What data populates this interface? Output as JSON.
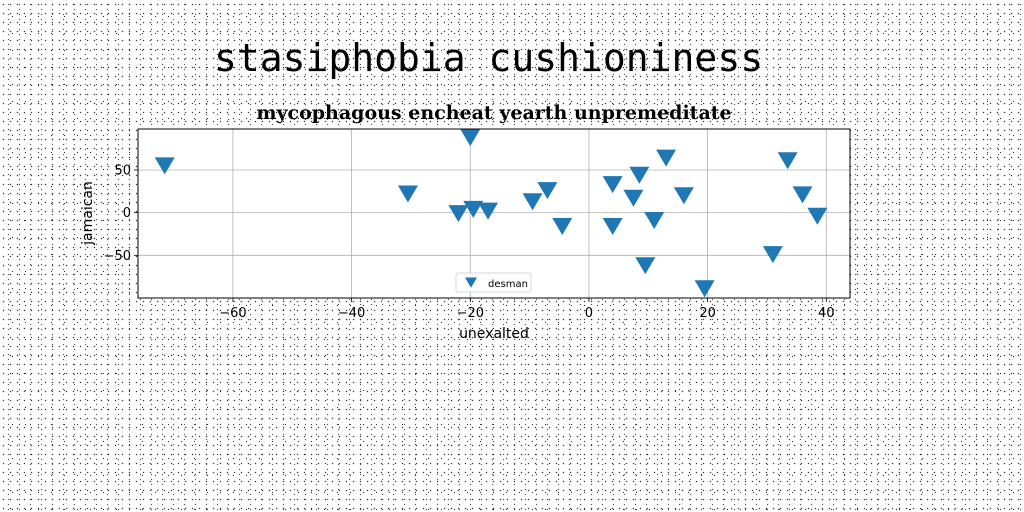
{
  "suptitle": "stasiphobia cushioniness",
  "chart_data": {
    "type": "scatter",
    "title": "mycophagous encheat yearth unpremeditate",
    "xlabel": "unexalted",
    "ylabel": "jamaican",
    "xlim": [
      -76,
      44
    ],
    "ylim": [
      -100,
      98
    ],
    "xticks": [
      -60,
      -40,
      -20,
      0,
      20,
      40
    ],
    "yticks": [
      -50,
      0,
      50
    ],
    "grid": true,
    "legend_position": "lower center",
    "marker": "triangle-down",
    "series": [
      {
        "name": "desman",
        "color": "#1f77b4",
        "points": [
          {
            "x": -71.5,
            "y": 56
          },
          {
            "x": -30.5,
            "y": 23
          },
          {
            "x": -22,
            "y": 0
          },
          {
            "x": -20,
            "y": 89
          },
          {
            "x": -19.5,
            "y": 5
          },
          {
            "x": -17,
            "y": 3
          },
          {
            "x": -9.5,
            "y": 14
          },
          {
            "x": -7,
            "y": 27
          },
          {
            "x": -4.5,
            "y": -15
          },
          {
            "x": 4,
            "y": 34
          },
          {
            "x": 4,
            "y": -15
          },
          {
            "x": 7.5,
            "y": 18
          },
          {
            "x": 8.5,
            "y": 45
          },
          {
            "x": 9.5,
            "y": -61
          },
          {
            "x": 11,
            "y": -8
          },
          {
            "x": 13,
            "y": 65
          },
          {
            "x": 16,
            "y": 21
          },
          {
            "x": 19.5,
            "y": -88
          },
          {
            "x": 31,
            "y": -48
          },
          {
            "x": 33.5,
            "y": 62
          },
          {
            "x": 36,
            "y": 22
          },
          {
            "x": 38.5,
            "y": -3
          }
        ]
      }
    ]
  }
}
